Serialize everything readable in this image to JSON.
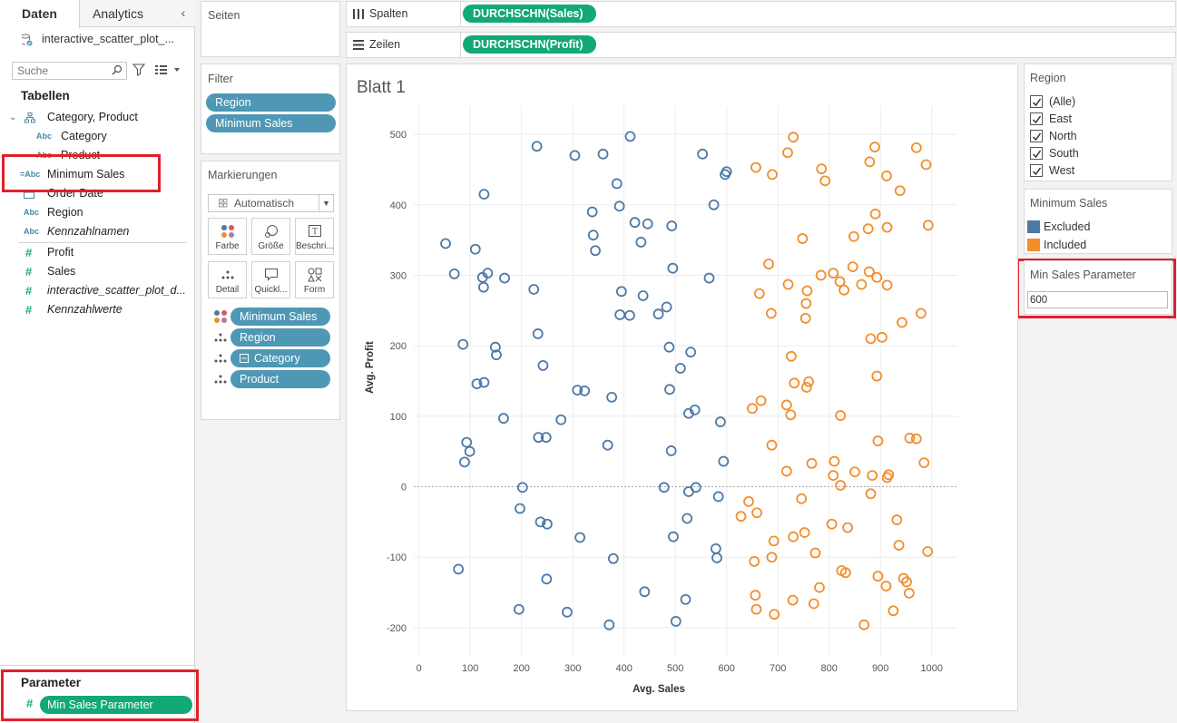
{
  "data_pane": {
    "tabs": [
      "Daten",
      "Analytics"
    ],
    "datasource_name": "interactive_scatter_plot_...",
    "search_placeholder": "Suche",
    "tables_heading": "Tabellen",
    "dimensions": [
      {
        "icon": "hierarchy-icon",
        "label": "Category, Product"
      },
      {
        "icon": "abc",
        "label": "Category"
      },
      {
        "icon": "abc",
        "label": "Product"
      },
      {
        "icon": "=Abc",
        "label": "Minimum Sales"
      },
      {
        "icon": "calendar-icon",
        "label": "Order Date"
      },
      {
        "icon": "abc",
        "label": "Region"
      },
      {
        "icon": "abc",
        "label": "Kennzahlnamen"
      }
    ],
    "measures": [
      {
        "icon": "#",
        "label": "Profit"
      },
      {
        "icon": "#",
        "label": "Sales"
      },
      {
        "icon": "#",
        "label": "interactive_scatter_plot_d..."
      },
      {
        "icon": "#",
        "label": "Kennzahlwerte"
      }
    ],
    "parameters_heading": "Parameter",
    "parameter": "Min Sales Parameter"
  },
  "shelves": {
    "pages_title": "Seiten",
    "columns_label": "Spalten",
    "columns_pill": "DURCHSCHN(Sales)",
    "rows_label": "Zeilen",
    "rows_pill": "DURCHSCHN(Profit)",
    "filter_title": "Filter",
    "filters": [
      "Region",
      "Minimum Sales"
    ],
    "marks_title": "Markierungen",
    "marks_type": "Automatisch",
    "mark_buttons": [
      "Farbe",
      "Größe",
      "Beschri...",
      "Detail",
      "Quickl...",
      "Form"
    ],
    "mark_fields": [
      "Minimum Sales",
      "Region",
      "Category",
      "Product"
    ]
  },
  "sheet": {
    "title": "Blatt 1"
  },
  "legends": {
    "region_title": "Region",
    "region_items": [
      "(Alle)",
      "East",
      "North",
      "South",
      "West"
    ],
    "min_sales_title": "Minimum Sales",
    "min_sales_items": [
      {
        "label": "Excluded",
        "color": "#4e79a7"
      },
      {
        "label": "Included",
        "color": "#f28e2b"
      }
    ],
    "param_title": "Min Sales Parameter",
    "param_value": "600"
  },
  "colors": {
    "excluded": "#4e79a7",
    "included": "#f28e2b",
    "pill_blue": "#4e98b5",
    "pill_green": "#12a877",
    "highlight": "#e0202a"
  },
  "chart_data": {
    "type": "scatter",
    "xlabel": "Avg. Sales",
    "ylabel": "Avg. Profit",
    "xlim": [
      -10,
      1050
    ],
    "ylim": [
      -240,
      540
    ],
    "xticks": [
      0,
      100,
      200,
      300,
      400,
      500,
      600,
      700,
      800,
      900,
      1000
    ],
    "yticks": [
      -200,
      -100,
      0,
      100,
      200,
      300,
      400,
      500
    ],
    "grid": true,
    "zero_line": true,
    "series": [
      {
        "name": "Excluded",
        "points": [
          [
            230,
            483
          ],
          [
            304,
            470
          ],
          [
            359,
            472
          ],
          [
            412,
            497
          ],
          [
            553,
            472
          ],
          [
            597,
            443
          ],
          [
            600,
            447
          ],
          [
            127,
            415
          ],
          [
            386,
            430
          ],
          [
            391,
            398
          ],
          [
            338,
            390
          ],
          [
            421,
            375
          ],
          [
            446,
            373
          ],
          [
            493,
            370
          ],
          [
            575,
            400
          ],
          [
            52,
            345
          ],
          [
            110,
            337
          ],
          [
            340,
            357
          ],
          [
            433,
            347
          ],
          [
            344,
            335
          ],
          [
            69,
            302
          ],
          [
            124,
            297
          ],
          [
            134,
            303
          ],
          [
            167,
            296
          ],
          [
            126,
            283
          ],
          [
            224,
            280
          ],
          [
            495,
            310
          ],
          [
            566,
            296
          ],
          [
            395,
            277
          ],
          [
            437,
            271
          ],
          [
            392,
            244
          ],
          [
            411,
            243
          ],
          [
            467,
            245
          ],
          [
            483,
            255
          ],
          [
            86,
            202
          ],
          [
            149,
            198
          ],
          [
            232,
            217
          ],
          [
            151,
            187
          ],
          [
            242,
            172
          ],
          [
            488,
            198
          ],
          [
            530,
            191
          ],
          [
            510,
            168
          ],
          [
            113,
            146
          ],
          [
            127,
            148
          ],
          [
            309,
            137
          ],
          [
            323,
            136
          ],
          [
            376,
            127
          ],
          [
            489,
            138
          ],
          [
            165,
            97
          ],
          [
            277,
            95
          ],
          [
            526,
            104
          ],
          [
            538,
            109
          ],
          [
            588,
            92
          ],
          [
            93,
            63
          ],
          [
            233,
            70
          ],
          [
            248,
            70
          ],
          [
            99,
            50
          ],
          [
            368,
            59
          ],
          [
            492,
            51
          ],
          [
            89,
            35
          ],
          [
            594,
            36
          ],
          [
            202,
            -1
          ],
          [
            478,
            -1
          ],
          [
            526,
            -7
          ],
          [
            540,
            -1
          ],
          [
            584,
            -14
          ],
          [
            197,
            -31
          ],
          [
            237,
            -50
          ],
          [
            250,
            -53
          ],
          [
            523,
            -45
          ],
          [
            314,
            -72
          ],
          [
            496,
            -71
          ],
          [
            579,
            -88
          ],
          [
            581,
            -101
          ],
          [
            379,
            -102
          ],
          [
            77,
            -117
          ],
          [
            249,
            -131
          ],
          [
            440,
            -149
          ],
          [
            520,
            -160
          ],
          [
            195,
            -174
          ],
          [
            289,
            -178
          ],
          [
            371,
            -196
          ],
          [
            501,
            -191
          ]
        ]
      },
      {
        "name": "Included",
        "points": [
          [
            730,
            496
          ],
          [
            719,
            474
          ],
          [
            889,
            482
          ],
          [
            970,
            481
          ],
          [
            657,
            453
          ],
          [
            689,
            443
          ],
          [
            785,
            451
          ],
          [
            792,
            434
          ],
          [
            879,
            461
          ],
          [
            989,
            457
          ],
          [
            912,
            441
          ],
          [
            938,
            420
          ],
          [
            748,
            352
          ],
          [
            848,
            355
          ],
          [
            876,
            366
          ],
          [
            890,
            387
          ],
          [
            913,
            368
          ],
          [
            993,
            371
          ],
          [
            682,
            316
          ],
          [
            664,
            274
          ],
          [
            720,
            287
          ],
          [
            757,
            278
          ],
          [
            784,
            300
          ],
          [
            808,
            303
          ],
          [
            821,
            291
          ],
          [
            829,
            279
          ],
          [
            846,
            312
          ],
          [
            863,
            287
          ],
          [
            878,
            305
          ],
          [
            893,
            297
          ],
          [
            913,
            286
          ],
          [
            755,
            260
          ],
          [
            687,
            246
          ],
          [
            754,
            239
          ],
          [
            942,
            233
          ],
          [
            979,
            246
          ],
          [
            726,
            185
          ],
          [
            881,
            210
          ],
          [
            903,
            212
          ],
          [
            732,
            147
          ],
          [
            760,
            149
          ],
          [
            756,
            141
          ],
          [
            667,
            122
          ],
          [
            650,
            111
          ],
          [
            717,
            116
          ],
          [
            725,
            102
          ],
          [
            893,
            157
          ],
          [
            822,
            101
          ],
          [
            688,
            59
          ],
          [
            895,
            65
          ],
          [
            957,
            69
          ],
          [
            970,
            68
          ],
          [
            717,
            22
          ],
          [
            766,
            33
          ],
          [
            808,
            16
          ],
          [
            810,
            36
          ],
          [
            822,
            2
          ],
          [
            850,
            21
          ],
          [
            884,
            16
          ],
          [
            913,
            13
          ],
          [
            916,
            17
          ],
          [
            985,
            34
          ],
          [
            746,
            -17
          ],
          [
            881,
            -10
          ],
          [
            643,
            -21
          ],
          [
            659,
            -37
          ],
          [
            628,
            -42
          ],
          [
            932,
            -47
          ],
          [
            805,
            -53
          ],
          [
            836,
            -58
          ],
          [
            752,
            -65
          ],
          [
            730,
            -71
          ],
          [
            692,
            -77
          ],
          [
            773,
            -94
          ],
          [
            936,
            -83
          ],
          [
            992,
            -92
          ],
          [
            654,
            -106
          ],
          [
            688,
            -100
          ],
          [
            895,
            -127
          ],
          [
            824,
            -119
          ],
          [
            832,
            -122
          ],
          [
            911,
            -141
          ],
          [
            945,
            -130
          ],
          [
            951,
            -135
          ],
          [
            956,
            -151
          ],
          [
            656,
            -154
          ],
          [
            658,
            -174
          ],
          [
            729,
            -161
          ],
          [
            781,
            -143
          ],
          [
            770,
            -166
          ],
          [
            693,
            -181
          ],
          [
            868,
            -196
          ],
          [
            925,
            -176
          ]
        ]
      }
    ]
  }
}
